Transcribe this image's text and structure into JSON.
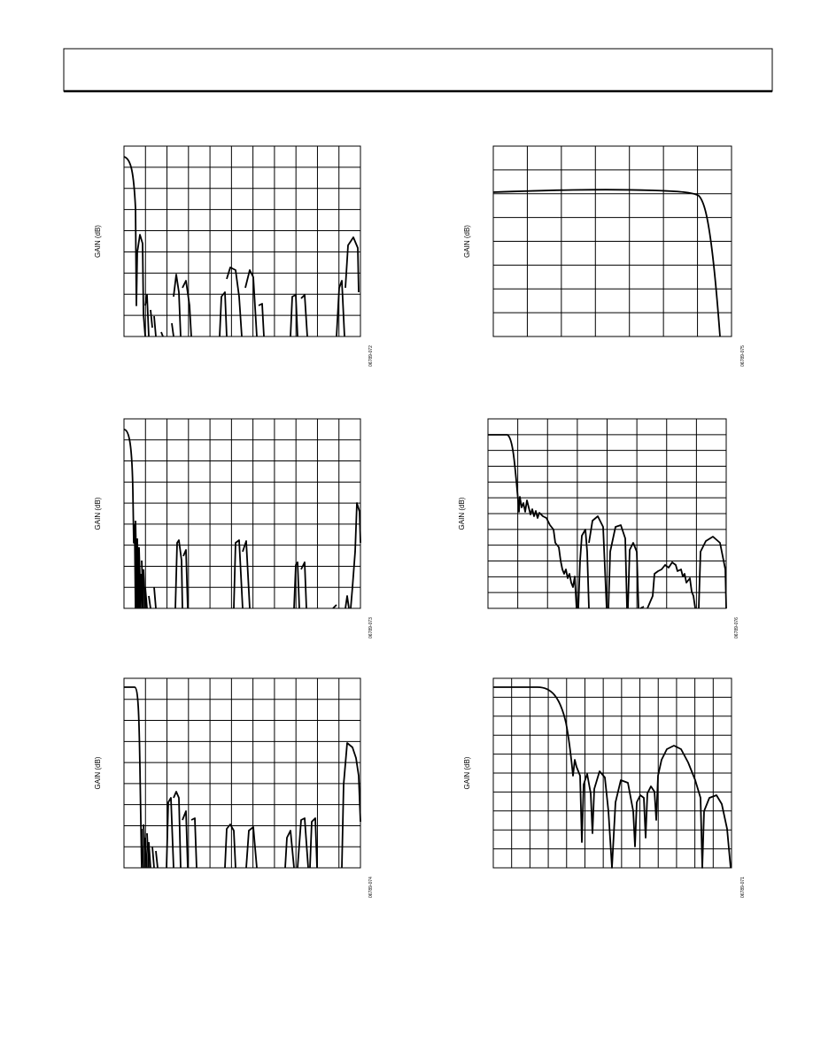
{
  "figures": [
    {
      "y_label": "GAIN (dB)",
      "figure_id": "06789-072"
    },
    {
      "y_label": "GAIN (dB)",
      "figure_id": "06789-075"
    },
    {
      "y_label": "GAIN (dB)",
      "figure_id": "06789-073"
    },
    {
      "y_label": "GAIN (dB)",
      "figure_id": "06789-076"
    },
    {
      "y_label": "GAIN (dB)",
      "figure_id": "06789-074"
    },
    {
      "y_label": "GAIN (dB)",
      "figure_id": "06789-071"
    }
  ]
}
